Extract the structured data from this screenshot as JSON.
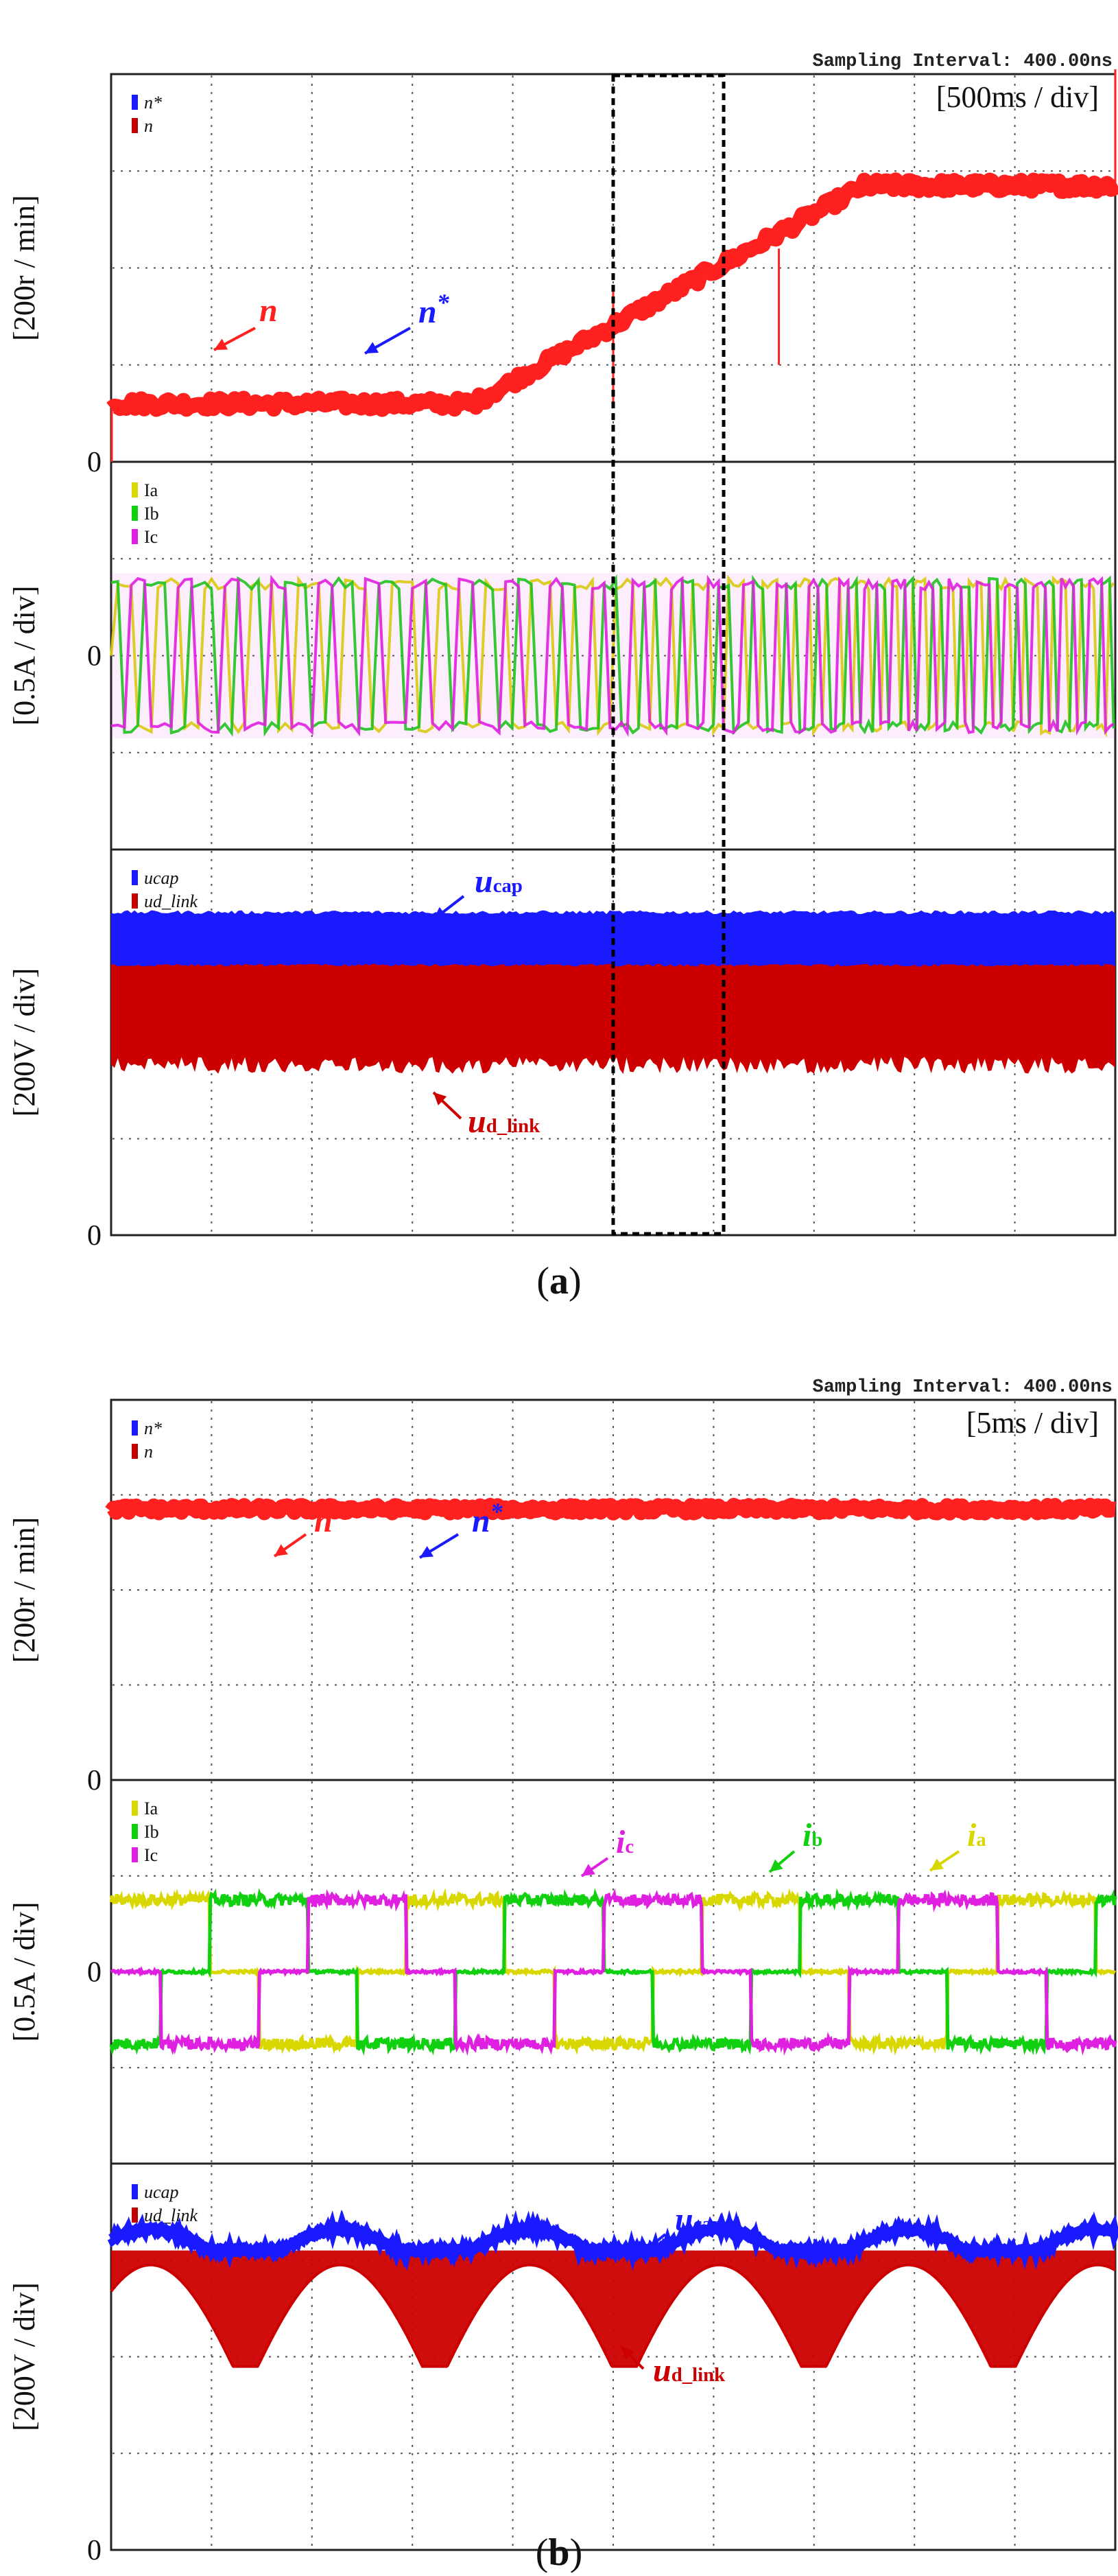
{
  "chart_data": [
    {
      "id": "a",
      "type": "line",
      "caption": "(a)",
      "header": "Sampling Interval:  400.00ns",
      "timebase": "[500ms / div]",
      "x_divisions": 10,
      "total_time_s": 5.0,
      "highlight_window_divs": [
        5.0,
        6.1
      ],
      "panels": [
        {
          "name": "speed",
          "ylabel": "[200r / min]",
          "zero_label": "0",
          "legend": [
            {
              "label": "n*",
              "color": "#1a1aff"
            },
            {
              "label": "n",
              "color": "#c00000"
            }
          ],
          "series": [
            {
              "name": "n*",
              "color": "#1a1aff",
              "points_div": [
                [
                  0,
                  0.6
                ],
                [
                  3.6,
                  0.6
                ],
                [
                  7.5,
                  2.85
                ],
                [
                  10,
                  2.85
                ]
              ]
            },
            {
              "name": "n",
              "color": "#ff2020",
              "points_div": [
                [
                  0,
                  0.6
                ],
                [
                  3.6,
                  0.6
                ],
                [
                  7.5,
                  2.85
                ],
                [
                  10,
                  2.85
                ]
              ]
            }
          ],
          "annotations": [
            {
              "text": "n",
              "color": "#ff2020",
              "target": "n"
            },
            {
              "text": "n*",
              "color": "#1a1aff",
              "target": "n*"
            }
          ]
        },
        {
          "name": "current",
          "ylabel": "[0.5A / div]",
          "zero_label": "0",
          "legend": [
            {
              "label": "Ia",
              "color": "#d8d800"
            },
            {
              "label": "Ib",
              "color": "#10d010"
            },
            {
              "label": "Ic",
              "color": "#e020e0"
            }
          ],
          "series": [
            {
              "name": "Ia",
              "color": "#d8d800",
              "amplitude_div": 0.8
            },
            {
              "name": "Ib",
              "color": "#10d010",
              "amplitude_div": 0.8
            },
            {
              "name": "Ic",
              "color": "#e020e0",
              "amplitude_div": 0.8
            }
          ]
        },
        {
          "name": "voltage",
          "ylabel": "[200V / div]",
          "zero_label": "0",
          "legend": [
            {
              "label": "ucap",
              "color": "#1a1aff"
            },
            {
              "label": "ud_link",
              "color": "#c00000"
            }
          ],
          "series": [
            {
              "name": "ucap",
              "color": "#1a1aff",
              "band_div": [
                2.8,
                3.35
              ]
            },
            {
              "name": "ud_link",
              "color": "#cc0000",
              "band_div": [
                1.85,
                2.85
              ]
            }
          ],
          "annotations": [
            {
              "text": "ucap",
              "color": "#1a1aff",
              "target": "ucap"
            },
            {
              "text": "ud_link",
              "color": "#cc0000",
              "target": "ud_link"
            }
          ]
        }
      ]
    },
    {
      "id": "b",
      "type": "line",
      "caption": "(b)",
      "header": "Sampling Interval:  400.00ns",
      "timebase": "[5ms / div]",
      "x_divisions": 10,
      "total_time_s": 0.05,
      "panels": [
        {
          "name": "speed",
          "ylabel": "[200r / min]",
          "zero_label": "0",
          "legend": [
            {
              "label": "n*",
              "color": "#1a1aff"
            },
            {
              "label": "n",
              "color": "#c00000"
            }
          ],
          "series": [
            {
              "name": "n*",
              "color": "#1a1aff",
              "level_div": 2.85
            },
            {
              "name": "n",
              "color": "#ff2020",
              "level_div": 2.85
            }
          ],
          "annotations": [
            {
              "text": "n",
              "color": "#ff2020",
              "target": "n"
            },
            {
              "text": "n*",
              "color": "#1a1aff",
              "target": "n*"
            }
          ]
        },
        {
          "name": "current",
          "ylabel": "[0.5A / div]",
          "zero_label": "0",
          "legend": [
            {
              "label": "Ia",
              "color": "#d8d800"
            },
            {
              "label": "Ib",
              "color": "#10d010"
            },
            {
              "label": "Ic",
              "color": "#e020e0"
            }
          ],
          "series": [
            {
              "name": "Ia",
              "color": "#d8d800",
              "six_step_amplitude_div": 0.75,
              "phase_deg": 0
            },
            {
              "name": "Ib",
              "color": "#10d010",
              "six_step_amplitude_div": 0.75,
              "phase_deg": -120
            },
            {
              "name": "Ic",
              "color": "#e020e0",
              "six_step_amplitude_div": 0.75,
              "phase_deg": 120
            }
          ],
          "annotations": [
            {
              "text": "ic",
              "color": "#e020e0",
              "target": "Ic"
            },
            {
              "text": "ib",
              "color": "#10d010",
              "target": "Ib"
            },
            {
              "text": "ia",
              "color": "#d8d800",
              "target": "Ia"
            }
          ]
        },
        {
          "name": "voltage",
          "ylabel": "[200V / div]",
          "zero_label": "0",
          "legend": [
            {
              "label": "ucap",
              "color": "#1a1aff"
            },
            {
              "label": "ud_link",
              "color": "#c00000"
            }
          ],
          "series": [
            {
              "name": "ucap",
              "color": "#1a1aff",
              "level_div": 3.1
            },
            {
              "name": "ud_link",
              "color": "#cc0000",
              "min_div": 1.9
            }
          ],
          "annotations": [
            {
              "text": "ucap",
              "color": "#1a1aff",
              "target": "ucap"
            },
            {
              "text": "ud_link",
              "color": "#cc0000",
              "target": "ud_link"
            }
          ]
        }
      ]
    }
  ]
}
